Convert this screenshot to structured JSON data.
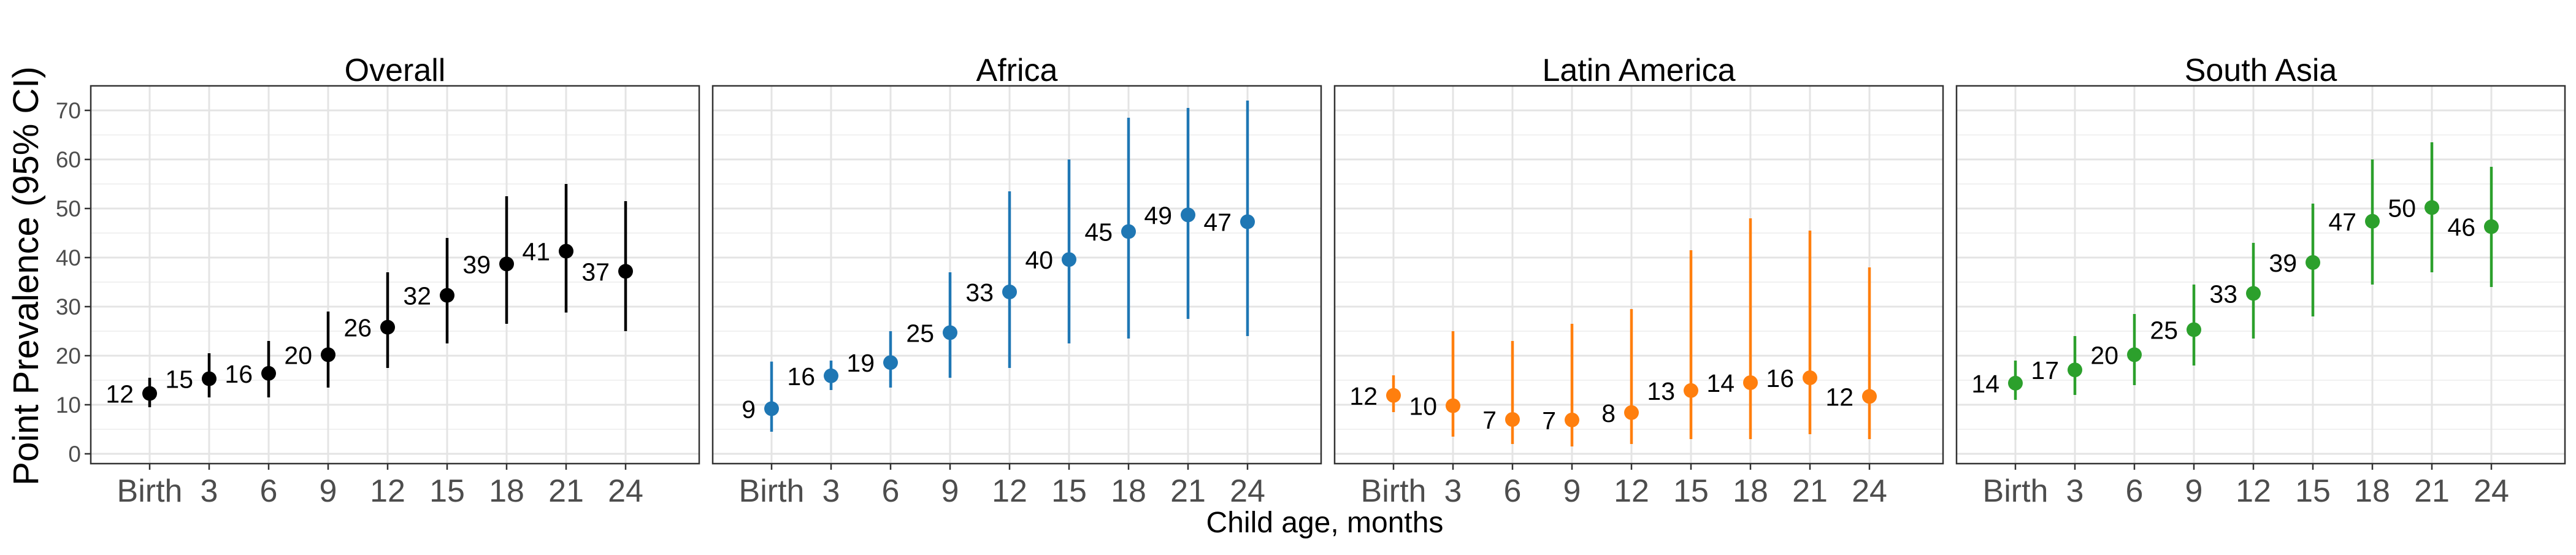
{
  "chart_data": {
    "type": "scatter",
    "ylabel": "Point Prevalence (95% CI)",
    "xlabel": "Child age, months",
    "x_categories": [
      "Birth",
      "3",
      "6",
      "9",
      "12",
      "15",
      "18",
      "21",
      "24"
    ],
    "ylim": [
      -2,
      75
    ],
    "y_ticks": [
      0,
      10,
      20,
      30,
      40,
      50,
      60,
      70
    ],
    "grid": true,
    "panels": [
      {
        "title": "Overall",
        "color": "#000000",
        "points": [
          {
            "x": "Birth",
            "y": 12.3,
            "lo": 9.5,
            "hi": 15.5,
            "label": "12"
          },
          {
            "x": "3",
            "y": 15.3,
            "lo": 11.5,
            "hi": 20.5,
            "label": "15"
          },
          {
            "x": "6",
            "y": 16.4,
            "lo": 11.5,
            "hi": 23,
            "label": "16"
          },
          {
            "x": "9",
            "y": 20.2,
            "lo": 13.5,
            "hi": 29,
            "label": "20"
          },
          {
            "x": "12",
            "y": 25.8,
            "lo": 17.5,
            "hi": 37,
            "label": "26"
          },
          {
            "x": "15",
            "y": 32.3,
            "lo": 22.5,
            "hi": 44,
            "label": "32"
          },
          {
            "x": "18",
            "y": 38.7,
            "lo": 26.5,
            "hi": 52.5,
            "label": "39"
          },
          {
            "x": "21",
            "y": 41.3,
            "lo": 28.8,
            "hi": 55,
            "label": "41"
          },
          {
            "x": "24",
            "y": 37.2,
            "lo": 25,
            "hi": 51.5,
            "label": "37"
          }
        ]
      },
      {
        "title": "Africa",
        "color": "#1f77b4",
        "points": [
          {
            "x": "Birth",
            "y": 9.2,
            "lo": 4.5,
            "hi": 18.8,
            "label": "9"
          },
          {
            "x": "3",
            "y": 15.9,
            "lo": 13,
            "hi": 19,
            "label": "16"
          },
          {
            "x": "6",
            "y": 18.6,
            "lo": 13.5,
            "hi": 25,
            "label": "19"
          },
          {
            "x": "9",
            "y": 24.7,
            "lo": 15.5,
            "hi": 37,
            "label": "25"
          },
          {
            "x": "12",
            "y": 33,
            "lo": 17.5,
            "hi": 53.5,
            "label": "33"
          },
          {
            "x": "15",
            "y": 39.6,
            "lo": 22.5,
            "hi": 60,
            "label": "40"
          },
          {
            "x": "18",
            "y": 45.3,
            "lo": 23.5,
            "hi": 68.5,
            "label": "45"
          },
          {
            "x": "21",
            "y": 48.7,
            "lo": 27.5,
            "hi": 70.5,
            "label": "49"
          },
          {
            "x": "24",
            "y": 47.3,
            "lo": 24,
            "hi": 72,
            "label": "47"
          }
        ]
      },
      {
        "title": "Latin America",
        "color": "#ff7f0e",
        "points": [
          {
            "x": "Birth",
            "y": 11.9,
            "lo": 8.5,
            "hi": 16,
            "label": "12"
          },
          {
            "x": "3",
            "y": 9.8,
            "lo": 3.5,
            "hi": 25,
            "label": "10"
          },
          {
            "x": "6",
            "y": 7,
            "lo": 2,
            "hi": 23,
            "label": "7"
          },
          {
            "x": "9",
            "y": 6.9,
            "lo": 1.5,
            "hi": 26.5,
            "label": "7"
          },
          {
            "x": "12",
            "y": 8.4,
            "lo": 2,
            "hi": 29.5,
            "label": "8"
          },
          {
            "x": "15",
            "y": 12.9,
            "lo": 3,
            "hi": 41.5,
            "label": "13"
          },
          {
            "x": "18",
            "y": 14.5,
            "lo": 3,
            "hi": 48,
            "label": "14"
          },
          {
            "x": "21",
            "y": 15.5,
            "lo": 4,
            "hi": 45.5,
            "label": "16"
          },
          {
            "x": "24",
            "y": 11.7,
            "lo": 3,
            "hi": 38,
            "label": "12"
          }
        ]
      },
      {
        "title": "South Asia",
        "color": "#2ca02c",
        "points": [
          {
            "x": "Birth",
            "y": 14.4,
            "lo": 11,
            "hi": 19,
            "label": "14"
          },
          {
            "x": "3",
            "y": 17.1,
            "lo": 12,
            "hi": 24,
            "label": "17"
          },
          {
            "x": "6",
            "y": 20.2,
            "lo": 14,
            "hi": 28.5,
            "label": "20"
          },
          {
            "x": "9",
            "y": 25.3,
            "lo": 18,
            "hi": 34.5,
            "label": "25"
          },
          {
            "x": "12",
            "y": 32.7,
            "lo": 23.5,
            "hi": 43,
            "label": "33"
          },
          {
            "x": "15",
            "y": 39,
            "lo": 28,
            "hi": 51,
            "label": "39"
          },
          {
            "x": "18",
            "y": 47.4,
            "lo": 34.5,
            "hi": 60,
            "label": "47"
          },
          {
            "x": "21",
            "y": 50.2,
            "lo": 37,
            "hi": 63.5,
            "label": "50"
          },
          {
            "x": "24",
            "y": 46.3,
            "lo": 34,
            "hi": 58.5,
            "label": "46"
          }
        ]
      }
    ]
  }
}
